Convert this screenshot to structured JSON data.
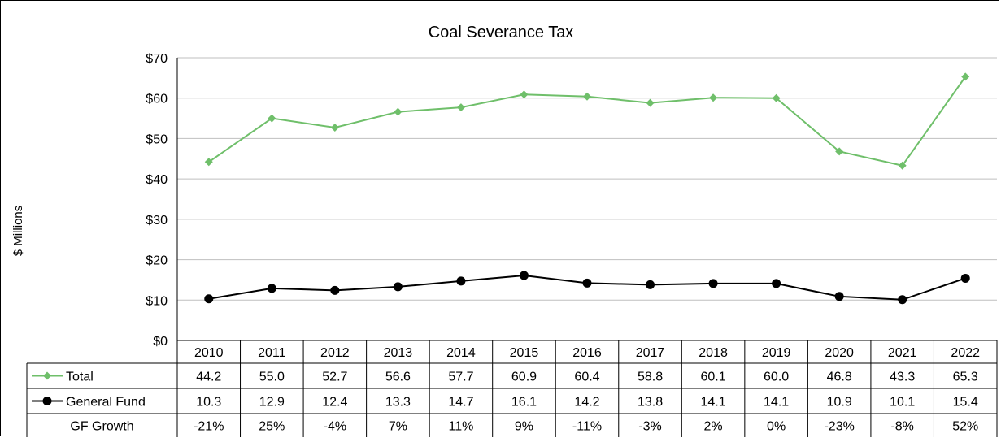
{
  "chart_data": {
    "type": "line",
    "title": "Coal Severance Tax",
    "ylabel": "$ Millions",
    "ylim": [
      0,
      70
    ],
    "yticks": [
      0,
      10,
      20,
      30,
      40,
      50,
      60,
      70
    ],
    "ytick_labels": [
      "$0",
      "$10",
      "$20",
      "$30",
      "$40",
      "$50",
      "$60",
      "$70"
    ],
    "categories": [
      "2010",
      "2011",
      "2012",
      "2013",
      "2014",
      "2015",
      "2016",
      "2017",
      "2018",
      "2019",
      "2020",
      "2021",
      "2022"
    ],
    "series": [
      {
        "name": "Total",
        "color": "#6fbf6a",
        "marker": "diamond",
        "values": [
          44.2,
          55.0,
          52.7,
          56.6,
          57.7,
          60.9,
          60.4,
          58.8,
          60.1,
          60.0,
          46.8,
          43.3,
          65.3
        ],
        "labels": [
          "44.2",
          "55.0",
          "52.7",
          "56.6",
          "57.7",
          "60.9",
          "60.4",
          "58.8",
          "60.1",
          "60.0",
          "46.8",
          "43.3",
          "65.3"
        ]
      },
      {
        "name": "General Fund",
        "color": "#000000",
        "marker": "circle",
        "values": [
          10.3,
          12.9,
          12.4,
          13.3,
          14.7,
          16.1,
          14.2,
          13.8,
          14.1,
          14.1,
          10.9,
          10.1,
          15.4
        ],
        "labels": [
          "10.3",
          "12.9",
          "12.4",
          "13.3",
          "14.7",
          "16.1",
          "14.2",
          "13.8",
          "14.1",
          "14.1",
          "10.9",
          "10.1",
          "15.4"
        ]
      }
    ],
    "table_rows": [
      {
        "name": "GF Growth",
        "values": [
          "-21%",
          "25%",
          "-4%",
          "7%",
          "11%",
          "9%",
          "-11%",
          "-3%",
          "2%",
          "0%",
          "-23%",
          "-8%",
          "52%"
        ]
      }
    ],
    "grid": true,
    "legend": "data-table"
  }
}
